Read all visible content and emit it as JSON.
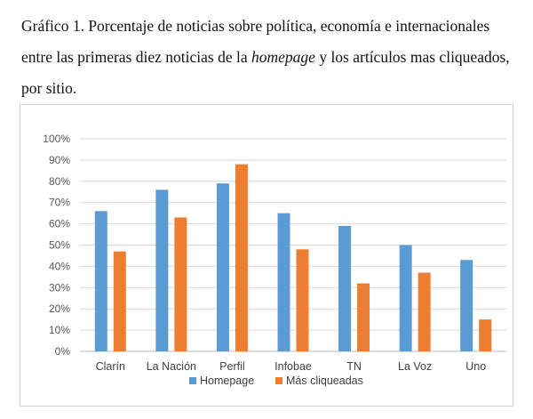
{
  "caption": {
    "part1": "Gráfico 1. Porcentaje de noticias sobre política, economía e internacionales entre las primeras diez noticias de la ",
    "italic": "homepage",
    "part2": " y los artículos mas cliqueados, por sitio."
  },
  "chart_data": {
    "type": "bar",
    "categories": [
      "Clarín",
      "La Nación",
      "Perfil",
      "Infobae",
      "TN",
      "La Voz",
      "Uno"
    ],
    "series": [
      {
        "name": "Homepage",
        "color": "#5b9bd5",
        "values": [
          66,
          76,
          79,
          65,
          59,
          50,
          43
        ]
      },
      {
        "name": "Más cliqueadas",
        "color": "#ed7d31",
        "values": [
          47,
          63,
          88,
          48,
          32,
          37,
          15
        ]
      }
    ],
    "y_ticks": [
      "0%",
      "10%",
      "20%",
      "30%",
      "40%",
      "50%",
      "60%",
      "70%",
      "80%",
      "90%",
      "100%"
    ],
    "ylim": [
      0,
      100
    ],
    "grid": true,
    "legend_position": "bottom"
  }
}
